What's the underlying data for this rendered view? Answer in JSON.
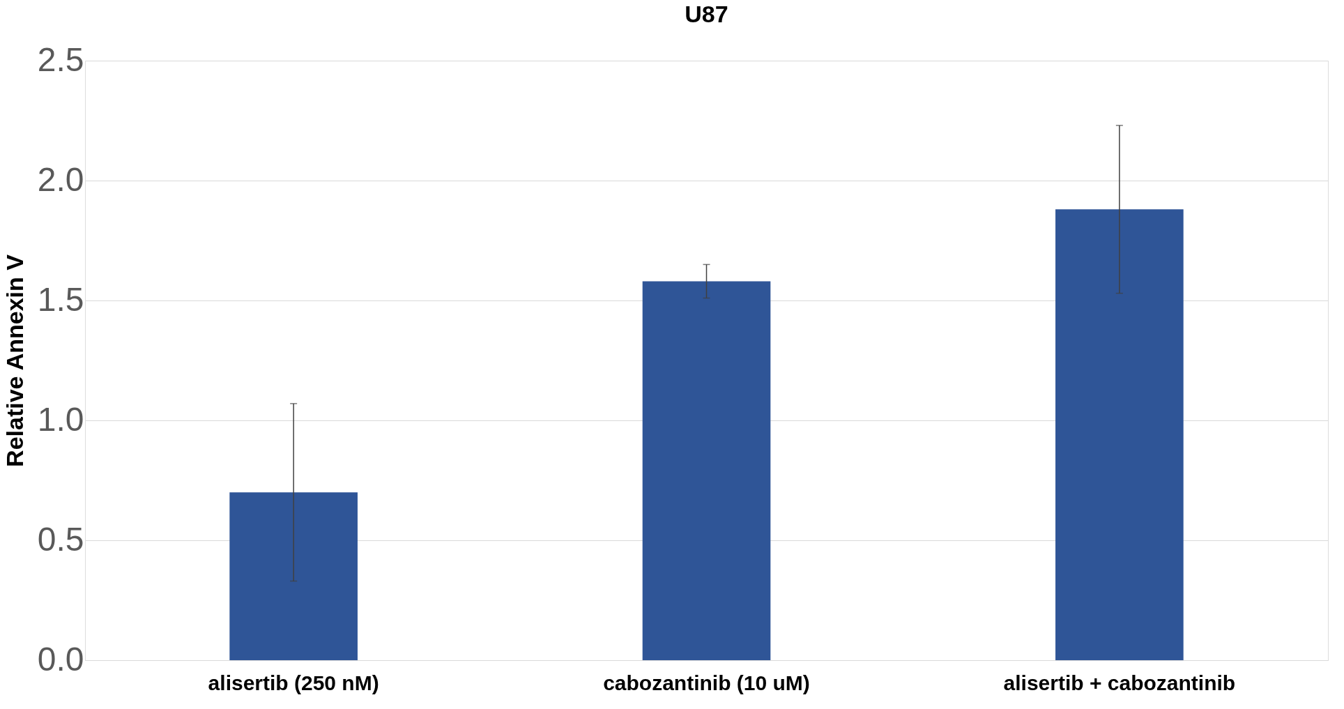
{
  "chart_data": {
    "type": "bar",
    "title": "U87",
    "ylabel": "Relative Annexin V",
    "categories": [
      "alisertib (250 nM)",
      "cabozantinib (10 uM)",
      "alisertib + cabozantinib"
    ],
    "values": [
      0.7,
      1.58,
      1.88
    ],
    "errors": [
      [
        0.33,
        1.07
      ],
      [
        1.51,
        1.65
      ],
      [
        1.53,
        2.23
      ]
    ],
    "color": "#2f5597",
    "ylim": [
      0,
      2.5
    ],
    "yticks": [
      {
        "value": 0,
        "label": "0.0"
      },
      {
        "value": 0.5,
        "label": "0.5"
      },
      {
        "value": 1,
        "label": "1.0"
      },
      {
        "value": 1.5,
        "label": "1.5"
      },
      {
        "value": 2,
        "label": "2.0"
      },
      {
        "value": 2.5,
        "label": "2.5"
      }
    ],
    "grid": "y"
  }
}
